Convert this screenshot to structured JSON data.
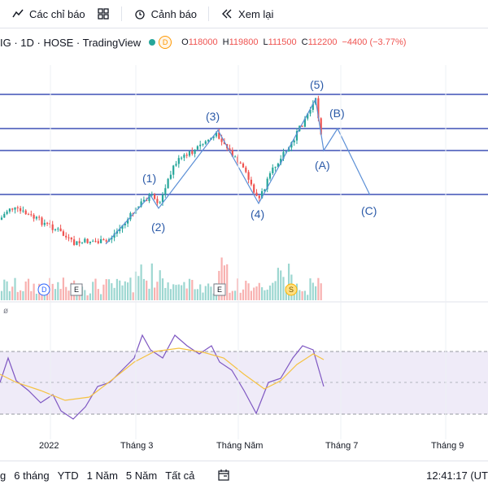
{
  "toolbar": {
    "indicators_label": "Các chỉ báo",
    "alerts_label": "Cảnh báo",
    "replay_label": "Xem lại"
  },
  "legend": {
    "symbol": "IG · 1D · HOSE · TradingView",
    "d_badge": "D",
    "open_label": "O",
    "open": "118000",
    "high_label": "H",
    "high": "119800",
    "low_label": "L",
    "low": "111500",
    "close_label": "C",
    "close": "112200",
    "change": "−4400 (−3.77%)"
  },
  "annotations": {
    "w1": "(1)",
    "w2": "(2)",
    "w3": "(3)",
    "w4": "(4)",
    "w5": "(5)",
    "wA": "(A)",
    "wB": "(B)",
    "wC": "(C)"
  },
  "events": {
    "d": "D",
    "e1": "E",
    "e2": "E",
    "s": "S"
  },
  "rsi_label": "ø",
  "bottom": {
    "ranges": [
      "g",
      "6 tháng",
      "YTD",
      "1 Năm",
      "5 Năm",
      "Tất cả"
    ],
    "time": "12:41:17 (UT"
  },
  "chart_data": {
    "type": "candlestick",
    "x_ticks": [
      "2022",
      "Tháng 3",
      "Tháng Năm",
      "Tháng 7",
      "Tháng 9"
    ],
    "horizontal_levels_note": "four support/resistance lines",
    "wave_path": [
      "start",
      "(1)",
      "(2)",
      "(3)",
      "(4)",
      "(5)",
      "(A)",
      "(B)",
      "(C)"
    ],
    "rsi_band": [
      30,
      70
    ],
    "colors": {
      "up": "#26a69a",
      "down": "#ef5350",
      "line": "#3f51b5",
      "rsi": "#7e57c2",
      "rsi_ma": "#f5c242"
    }
  }
}
